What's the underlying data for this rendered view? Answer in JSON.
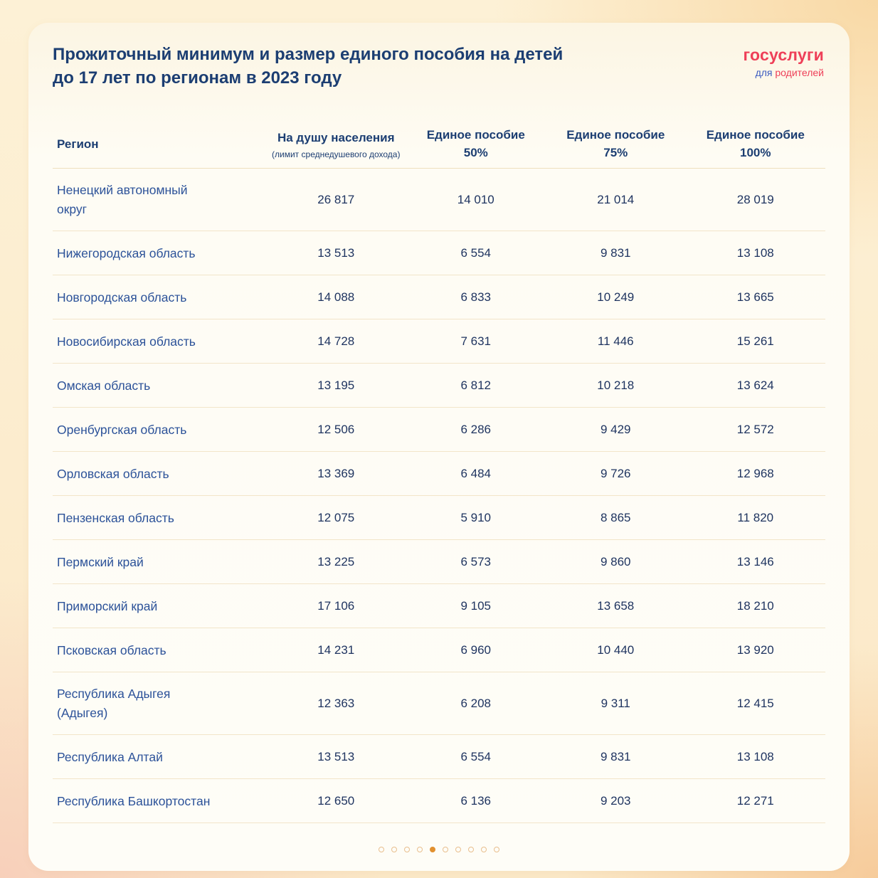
{
  "header": {
    "title_line1": "Прожиточный минимум и размер единого пособия на детей",
    "title_line2": "до 17 лет по регионам в 2023 году",
    "logo": {
      "brand": "госуслуги",
      "sub_blue": "для",
      "sub_red": "родителей"
    }
  },
  "table": {
    "columns": [
      {
        "label": "Регион"
      },
      {
        "label": "На душу населения",
        "sub": "(лимит среднедушевого дохода)"
      },
      {
        "label": "Единое пособие",
        "sub": "50%"
      },
      {
        "label": "Единое пособие",
        "sub": "75%"
      },
      {
        "label": "Единое пособие",
        "sub": "100%"
      }
    ],
    "rows": [
      {
        "region": "Ненецкий автономный\nокруг",
        "values": [
          "26 817",
          "14 010",
          "21 014",
          "28 019"
        ]
      },
      {
        "region": "Нижегородская область",
        "values": [
          "13 513",
          "6 554",
          "9 831",
          "13 108"
        ]
      },
      {
        "region": "Новгородская область",
        "values": [
          "14 088",
          "6 833",
          "10 249",
          "13 665"
        ]
      },
      {
        "region": "Новосибирская область",
        "values": [
          "14 728",
          "7 631",
          "11 446",
          "15 261"
        ]
      },
      {
        "region": "Омская область",
        "values": [
          "13 195",
          "6 812",
          "10 218",
          "13 624"
        ]
      },
      {
        "region": "Оренбургская область",
        "values": [
          "12 506",
          "6 286",
          "9 429",
          "12 572"
        ]
      },
      {
        "region": "Орловская область",
        "values": [
          "13 369",
          "6 484",
          "9 726",
          "12 968"
        ]
      },
      {
        "region": "Пензенская область",
        "values": [
          "12 075",
          "5 910",
          "8 865",
          "11 820"
        ]
      },
      {
        "region": "Пермский край",
        "values": [
          "13 225",
          "6 573",
          "9 860",
          "13 146"
        ]
      },
      {
        "region": "Приморский край",
        "values": [
          "17 106",
          "9 105",
          "13 658",
          "18 210"
        ]
      },
      {
        "region": "Псковская область",
        "values": [
          "14 231",
          "6 960",
          "10 440",
          "13 920"
        ]
      },
      {
        "region": "Республика Адыгея\n(Адыгея)",
        "values": [
          "12 363",
          "6 208",
          "9 311",
          "12 415"
        ]
      },
      {
        "region": "Республика Алтай",
        "values": [
          "13 513",
          "6 554",
          "9 831",
          "13 108"
        ]
      },
      {
        "region": "Республика Башкортостан",
        "values": [
          "12 650",
          "6 136",
          "9 203",
          "12 271"
        ]
      }
    ]
  },
  "pagination": {
    "total": 10,
    "active_index": 4
  },
  "colors": {
    "title_navy": "#1c3e72",
    "region_blue": "#2c5299",
    "value_navy": "#1f3460",
    "brand_red": "#ee3f58",
    "dot_active": "#e1902f",
    "dot_inactive_border": "#e9bf8e",
    "separator": "#f2e5c9"
  },
  "chart_data": {
    "type": "table",
    "title": "Прожиточный минимум и размер единого пособия на детей до 17 лет по регионам в 2023 году",
    "columns": [
      "Регион",
      "На душу населения (лимит среднедушевого дохода)",
      "Единое пособие 50%",
      "Единое пособие 75%",
      "Единое пособие 100%"
    ],
    "rows": [
      [
        "Ненецкий автономный округ",
        26817,
        14010,
        21014,
        28019
      ],
      [
        "Нижегородская область",
        13513,
        6554,
        9831,
        13108
      ],
      [
        "Новгородская область",
        14088,
        6833,
        10249,
        13665
      ],
      [
        "Новосибирская область",
        14728,
        7631,
        11446,
        15261
      ],
      [
        "Омская область",
        13195,
        6812,
        10218,
        13624
      ],
      [
        "Оренбургская область",
        12506,
        6286,
        9429,
        12572
      ],
      [
        "Орловская область",
        13369,
        6484,
        9726,
        12968
      ],
      [
        "Пензенская область",
        12075,
        5910,
        8865,
        11820
      ],
      [
        "Пермский край",
        13225,
        6573,
        9860,
        13146
      ],
      [
        "Приморский край",
        17106,
        9105,
        13658,
        18210
      ],
      [
        "Псковская область",
        14231,
        6960,
        10440,
        13920
      ],
      [
        "Республика Адыгея (Адыгея)",
        12363,
        6208,
        9311,
        12415
      ],
      [
        "Республика Алтай",
        13513,
        6554,
        9831,
        13108
      ],
      [
        "Республика Башкортостан",
        12650,
        6136,
        9203,
        12271
      ]
    ]
  }
}
